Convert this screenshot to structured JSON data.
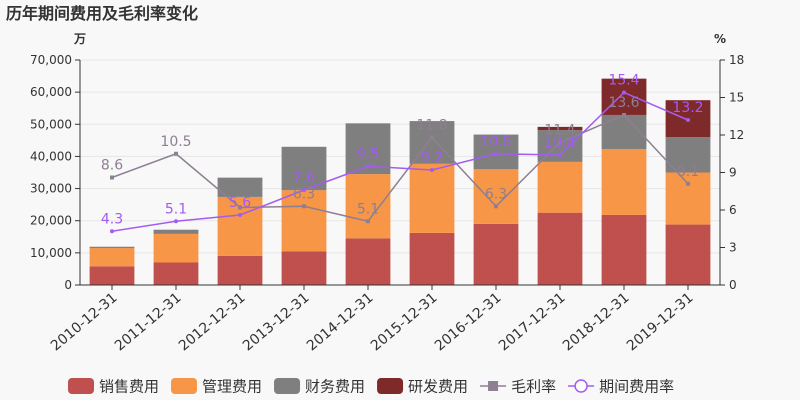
{
  "chart_data": {
    "type": "bar",
    "title": "历年期间费用及毛利率变化",
    "left_unit": "万",
    "right_unit": "%",
    "categories": [
      "2010-12-31",
      "2011-12-31",
      "2012-12-31",
      "2013-12-31",
      "2014-12-31",
      "2015-12-31",
      "2016-12-31",
      "2017-12-31",
      "2018-12-31",
      "2019-12-31"
    ],
    "ylim_left": [
      0,
      70000
    ],
    "yticks_left": [
      "0",
      "10,000",
      "20,000",
      "30,000",
      "40,000",
      "50,000",
      "60,000",
      "70,000"
    ],
    "ylim_right": [
      0,
      18
    ],
    "yticks_right": [
      "0",
      "3",
      "6",
      "9",
      "12",
      "15",
      "18"
    ],
    "bar_series": [
      {
        "name": "销售费用",
        "color": "#c0504d",
        "values": [
          5800,
          7000,
          9100,
          10500,
          14500,
          16200,
          19000,
          22500,
          21800,
          18800
        ]
      },
      {
        "name": "管理费用",
        "color": "#f79646",
        "values": [
          5700,
          8900,
          18300,
          19000,
          20000,
          21500,
          17000,
          15800,
          20500,
          16200
        ]
      },
      {
        "name": "财务费用",
        "color": "#7f7f7f",
        "values": [
          400,
          1300,
          6000,
          13500,
          15800,
          13300,
          10800,
          9900,
          10600,
          11000
        ]
      },
      {
        "name": "研发费用",
        "color": "#7f2a2a",
        "values": [
          0,
          0,
          0,
          0,
          0,
          0,
          0,
          1000,
          11300,
          11500
        ]
      }
    ],
    "line_series": [
      {
        "name": "毛利率",
        "color": "#8e7f92",
        "marker": "square",
        "values": [
          8.6,
          10.5,
          6.2,
          6.3,
          5.1,
          11.8,
          6.3,
          11.4,
          13.6,
          8.1
        ],
        "labels": [
          "8.6",
          "10.5",
          "",
          "6.3",
          "5.1",
          "11.8",
          "6.3",
          "11.4",
          "13.6",
          "8.1"
        ]
      },
      {
        "name": "期间费用率",
        "color": "#a35cf0",
        "marker": "circle",
        "values": [
          4.3,
          5.1,
          5.6,
          7.6,
          9.5,
          9.2,
          10.5,
          10.4,
          15.4,
          13.2
        ],
        "labels": [
          "4.3",
          "5.1",
          "5.6",
          "7.6",
          "9.5",
          "9.2",
          "10.5",
          "10.4",
          "15.4",
          "13.2"
        ]
      }
    ],
    "legend_position": "bottom"
  }
}
